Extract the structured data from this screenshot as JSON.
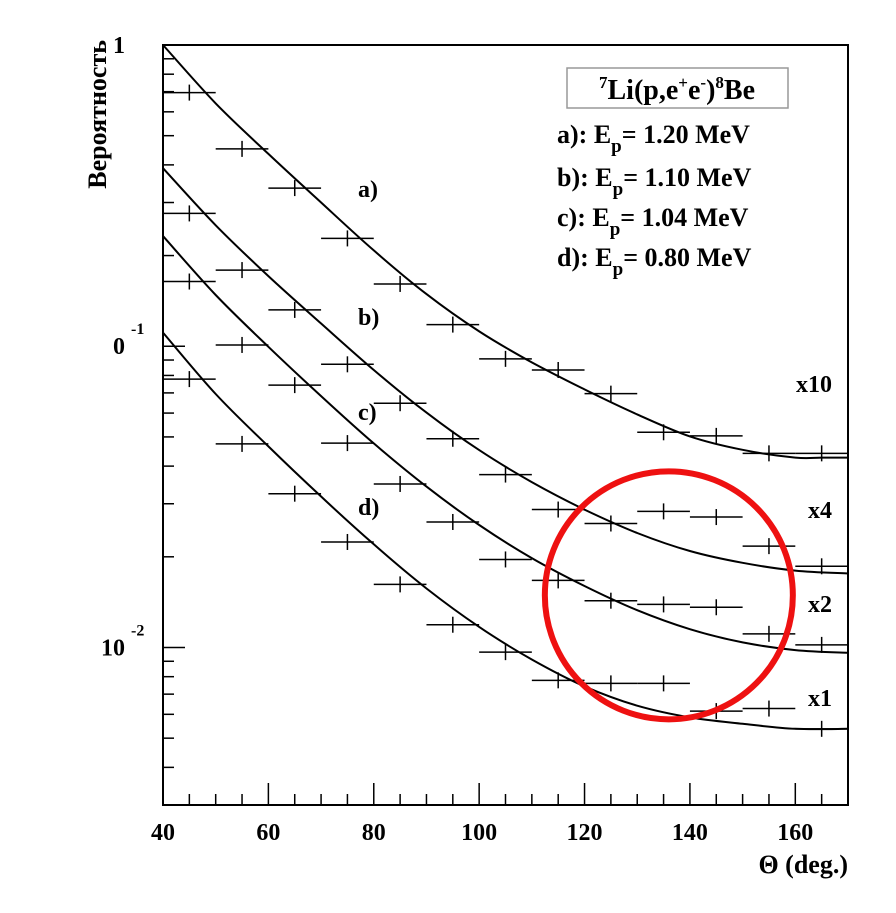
{
  "chart_data": {
    "type": "line",
    "title": "",
    "xlabel": "Θ (deg.)",
    "ylabel": "Вероятность",
    "xlim": [
      40,
      170
    ],
    "ylim": [
      0.003,
      1
    ],
    "y_scale": "log",
    "x_ticks": [
      "40",
      "60",
      "80",
      "100",
      "120",
      "140",
      "160"
    ],
    "y_ticks": [
      {
        "mantissa": "1",
        "exponent": ""
      },
      {
        "mantissa": "0",
        "exponent": "-1"
      },
      {
        "mantissa": "10",
        "exponent": "-2"
      }
    ],
    "legend": {
      "title": {
        "sup1": "7",
        "main1": "Li(p,e",
        "sup2": "+",
        "mid": "e",
        "sup3": "-",
        "main2": ")",
        "sup4": "8",
        "main3": "Be"
      },
      "placement": "top-right",
      "entries": [
        {
          "prefix": "a): E",
          "sub": "p",
          "value": "= 1.20 MeV"
        },
        {
          "prefix": "b): E",
          "sub": "p",
          "value": "= 1.10 MeV"
        },
        {
          "prefix": "c): E",
          "sub": "p",
          "value": "= 1.04 MeV"
        },
        {
          "prefix": "d): E",
          "sub": "p",
          "value": "= 0.80 MeV"
        }
      ]
    },
    "series": [
      {
        "name": "a)",
        "scale_label": "x10",
        "points": [
          {
            "x": 45,
            "y": 0.695,
            "xerr": 5
          },
          {
            "x": 55,
            "y": 0.452,
            "xerr": 5
          },
          {
            "x": 65,
            "y": 0.335,
            "xerr": 5
          },
          {
            "x": 75,
            "y": 0.228,
            "xerr": 5
          },
          {
            "x": 85,
            "y": 0.161,
            "xerr": 5
          },
          {
            "x": 95,
            "y": 0.118,
            "xerr": 5
          },
          {
            "x": 105,
            "y": 0.0908,
            "xerr": 5
          },
          {
            "x": 115,
            "y": 0.0834,
            "xerr": 5
          },
          {
            "x": 125,
            "y": 0.0696,
            "xerr": 5
          },
          {
            "x": 135,
            "y": 0.0518,
            "xerr": 5
          },
          {
            "x": 145,
            "y": 0.0504,
            "xerr": 5
          },
          {
            "x": 155,
            "y": 0.0441,
            "xerr": 5
          },
          {
            "x": 165,
            "y": 0.0441,
            "xerr": 5
          }
        ],
        "curve": [
          [
            40,
            1.0
          ],
          [
            50,
            0.64
          ],
          [
            60,
            0.435
          ],
          [
            70,
            0.3
          ],
          [
            80,
            0.208
          ],
          [
            90,
            0.149
          ],
          [
            100,
            0.112
          ],
          [
            110,
            0.0884
          ],
          [
            120,
            0.0719
          ],
          [
            130,
            0.0594
          ],
          [
            140,
            0.0502
          ],
          [
            150,
            0.0453
          ],
          [
            160,
            0.0427
          ],
          [
            165,
            0.0427
          ],
          [
            170,
            0.0427
          ]
        ]
      },
      {
        "name": "b)",
        "scale_label": "x4",
        "points": [
          {
            "x": 45,
            "y": 0.276,
            "xerr": 5
          },
          {
            "x": 55,
            "y": 0.179,
            "xerr": 5
          },
          {
            "x": 65,
            "y": 0.132,
            "xerr": 5
          },
          {
            "x": 75,
            "y": 0.0871,
            "xerr": 5
          },
          {
            "x": 85,
            "y": 0.0647,
            "xerr": 5
          },
          {
            "x": 95,
            "y": 0.0493,
            "xerr": 5
          },
          {
            "x": 105,
            "y": 0.0375,
            "xerr": 5
          },
          {
            "x": 115,
            "y": 0.0287,
            "xerr": 5
          },
          {
            "x": 125,
            "y": 0.0258,
            "xerr": 5
          },
          {
            "x": 135,
            "y": 0.0283,
            "xerr": 5
          },
          {
            "x": 145,
            "y": 0.0271,
            "xerr": 5
          },
          {
            "x": 155,
            "y": 0.0217,
            "xerr": 5
          },
          {
            "x": 165,
            "y": 0.0186,
            "xerr": 5
          }
        ],
        "curve": [
          [
            40,
            0.39
          ],
          [
            50,
            0.252
          ],
          [
            60,
            0.171
          ],
          [
            70,
            0.119
          ],
          [
            80,
            0.0834
          ],
          [
            90,
            0.0602
          ],
          [
            100,
            0.0452
          ],
          [
            110,
            0.0354
          ],
          [
            120,
            0.0287
          ],
          [
            130,
            0.024
          ],
          [
            140,
            0.0209
          ],
          [
            150,
            0.0191
          ],
          [
            160,
            0.018
          ],
          [
            170,
            0.0176
          ]
        ]
      },
      {
        "name": "c)",
        "scale_label": "x2",
        "points": [
          {
            "x": 45,
            "y": 0.164,
            "xerr": 5
          },
          {
            "x": 55,
            "y": 0.101,
            "xerr": 5
          },
          {
            "x": 65,
            "y": 0.0743,
            "xerr": 5
          },
          {
            "x": 75,
            "y": 0.0477,
            "xerr": 5
          },
          {
            "x": 85,
            "y": 0.0349,
            "xerr": 5
          },
          {
            "x": 95,
            "y": 0.0261,
            "xerr": 5
          },
          {
            "x": 105,
            "y": 0.0196,
            "xerr": 5
          },
          {
            "x": 115,
            "y": 0.0167,
            "xerr": 5
          },
          {
            "x": 125,
            "y": 0.0143,
            "xerr": 5
          },
          {
            "x": 135,
            "y": 0.0139,
            "xerr": 5
          },
          {
            "x": 145,
            "y": 0.0136,
            "xerr": 5
          },
          {
            "x": 155,
            "y": 0.0111,
            "xerr": 5
          },
          {
            "x": 165,
            "y": 0.0102,
            "xerr": 5
          }
        ],
        "curve": [
          [
            40,
            0.232
          ],
          [
            50,
            0.148
          ],
          [
            60,
            0.0996
          ],
          [
            70,
            0.0683
          ],
          [
            80,
            0.0476
          ],
          [
            90,
            0.0342
          ],
          [
            100,
            0.0255
          ],
          [
            110,
            0.0198
          ],
          [
            120,
            0.016
          ],
          [
            130,
            0.0133
          ],
          [
            140,
            0.0115
          ],
          [
            150,
            0.0104
          ],
          [
            160,
            0.0098
          ],
          [
            170,
            0.0096
          ]
        ]
      },
      {
        "name": "d)",
        "scale_label": "x1",
        "points": [
          {
            "x": 45,
            "y": 0.0778,
            "xerr": 5
          },
          {
            "x": 55,
            "y": 0.0474,
            "xerr": 5
          },
          {
            "x": 65,
            "y": 0.0324,
            "xerr": 5
          },
          {
            "x": 75,
            "y": 0.0224,
            "xerr": 5
          },
          {
            "x": 85,
            "y": 0.0162,
            "xerr": 5
          },
          {
            "x": 95,
            "y": 0.0119,
            "xerr": 5
          },
          {
            "x": 105,
            "y": 0.00965,
            "xerr": 5
          },
          {
            "x": 115,
            "y": 0.00778,
            "xerr": 5
          },
          {
            "x": 125,
            "y": 0.0076,
            "xerr": 5
          },
          {
            "x": 135,
            "y": 0.0076,
            "xerr": 5
          },
          {
            "x": 145,
            "y": 0.00615,
            "xerr": 5
          },
          {
            "x": 155,
            "y": 0.00627,
            "xerr": 5
          },
          {
            "x": 165,
            "y": 0.00537,
            "xerr": 5
          }
        ],
        "curve": [
          [
            40,
            0.111
          ],
          [
            50,
            0.0694
          ],
          [
            60,
            0.0465
          ],
          [
            70,
            0.0317
          ],
          [
            80,
            0.022
          ],
          [
            90,
            0.0157
          ],
          [
            100,
            0.0117
          ],
          [
            110,
            0.00912
          ],
          [
            120,
            0.00743
          ],
          [
            130,
            0.00641
          ],
          [
            140,
            0.00586
          ],
          [
            150,
            0.00558
          ],
          [
            160,
            0.00537
          ],
          [
            170,
            0.00537
          ]
        ]
      }
    ],
    "annotation": {
      "shape": "circle",
      "color": "#ee1111",
      "center": [
        136,
        0.0149
      ]
    }
  }
}
